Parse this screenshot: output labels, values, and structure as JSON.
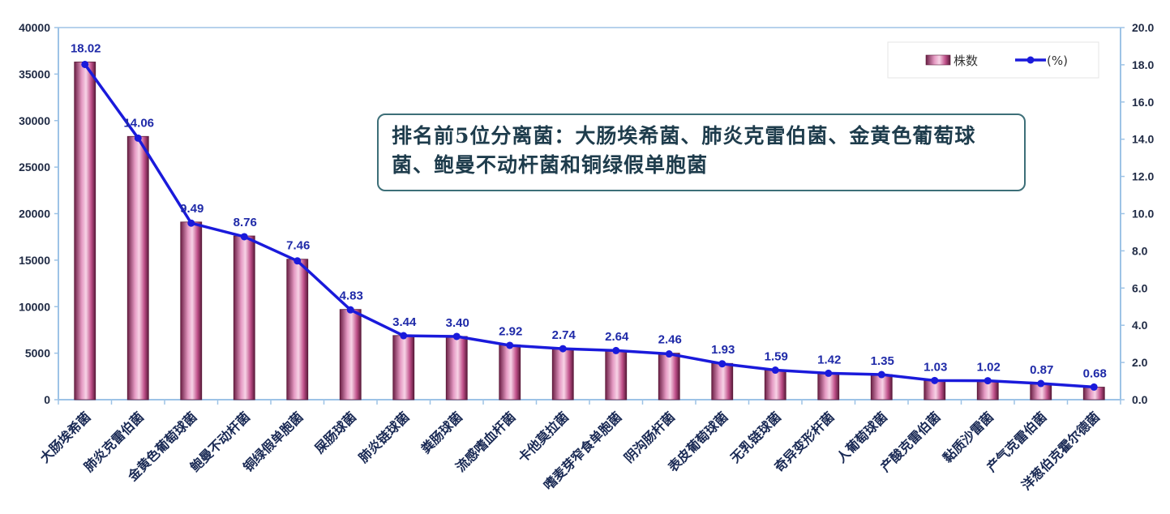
{
  "chart_data": {
    "type": "bar",
    "categories": [
      "大肠埃希菌",
      "肺炎克雷伯菌",
      "金黄色葡萄球菌",
      "鲍曼不动杆菌",
      "铜绿假单胞菌",
      "屎肠球菌",
      "肺炎链球菌",
      "粪肠球菌",
      "流感嗜血杆菌",
      "卡他莫拉菌",
      "嗜麦芽窄食单胞菌",
      "阴沟肠杆菌",
      "表皮葡萄球菌",
      "无乳链球菌",
      "奇异变形杆菌",
      "人葡萄球菌",
      "产酸克雷伯菌",
      "黏质沙雷菌",
      "产气克雷伯菌",
      "洋葱伯克霍尔德菌"
    ],
    "series": [
      {
        "name": "株数",
        "type": "bar",
        "axis": "left",
        "values": [
          36300,
          28300,
          19100,
          17600,
          15100,
          9700,
          6900,
          6800,
          5900,
          5500,
          5300,
          5000,
          3900,
          3200,
          2850,
          2700,
          2050,
          2050,
          1750,
          1350
        ],
        "color": "#c0508a"
      },
      {
        "name": "(%)",
        "type": "line",
        "axis": "right",
        "values": [
          18.02,
          14.06,
          9.49,
          8.76,
          7.46,
          4.83,
          3.44,
          3.4,
          2.92,
          2.74,
          2.64,
          2.46,
          1.93,
          1.59,
          1.42,
          1.35,
          1.03,
          1.02,
          0.87,
          0.68
        ],
        "labels": [
          "18.02",
          "14.06",
          "9.49",
          "8.76",
          "7.46",
          "4.83",
          "3.44",
          "3.40",
          "2.92",
          "2.74",
          "2.64",
          "2.46",
          "1.93",
          "1.59",
          "1.42",
          "1.35",
          "1.03",
          "1.02",
          "0.87",
          "0.68"
        ],
        "color": "#1a1adb"
      }
    ],
    "ylim": [
      0,
      40000
    ],
    "yticks": [
      "0",
      "5000",
      "10000",
      "15000",
      "20000",
      "25000",
      "30000",
      "35000",
      "40000"
    ],
    "y2lim": [
      0,
      20
    ],
    "y2ticks": [
      "0.0",
      "2.0",
      "4.0",
      "6.0",
      "8.0",
      "10.0",
      "12.0",
      "14.0",
      "16.0",
      "18.0",
      "20.0"
    ],
    "legend": {
      "position": "top-right",
      "entries": [
        "株数",
        "(%)"
      ]
    },
    "grid": false
  },
  "annotation": {
    "text": "排名前5位分离菌：大肠埃希菌、肺炎克雷伯菌、金黄色葡萄球菌、鲍曼不动杆菌和铜绿假单胞菌"
  },
  "colors": {
    "bar": "#c0508a",
    "line": "#1a1adb",
    "axis": "#9dc3e6",
    "callout_border": "#3d6f78"
  }
}
